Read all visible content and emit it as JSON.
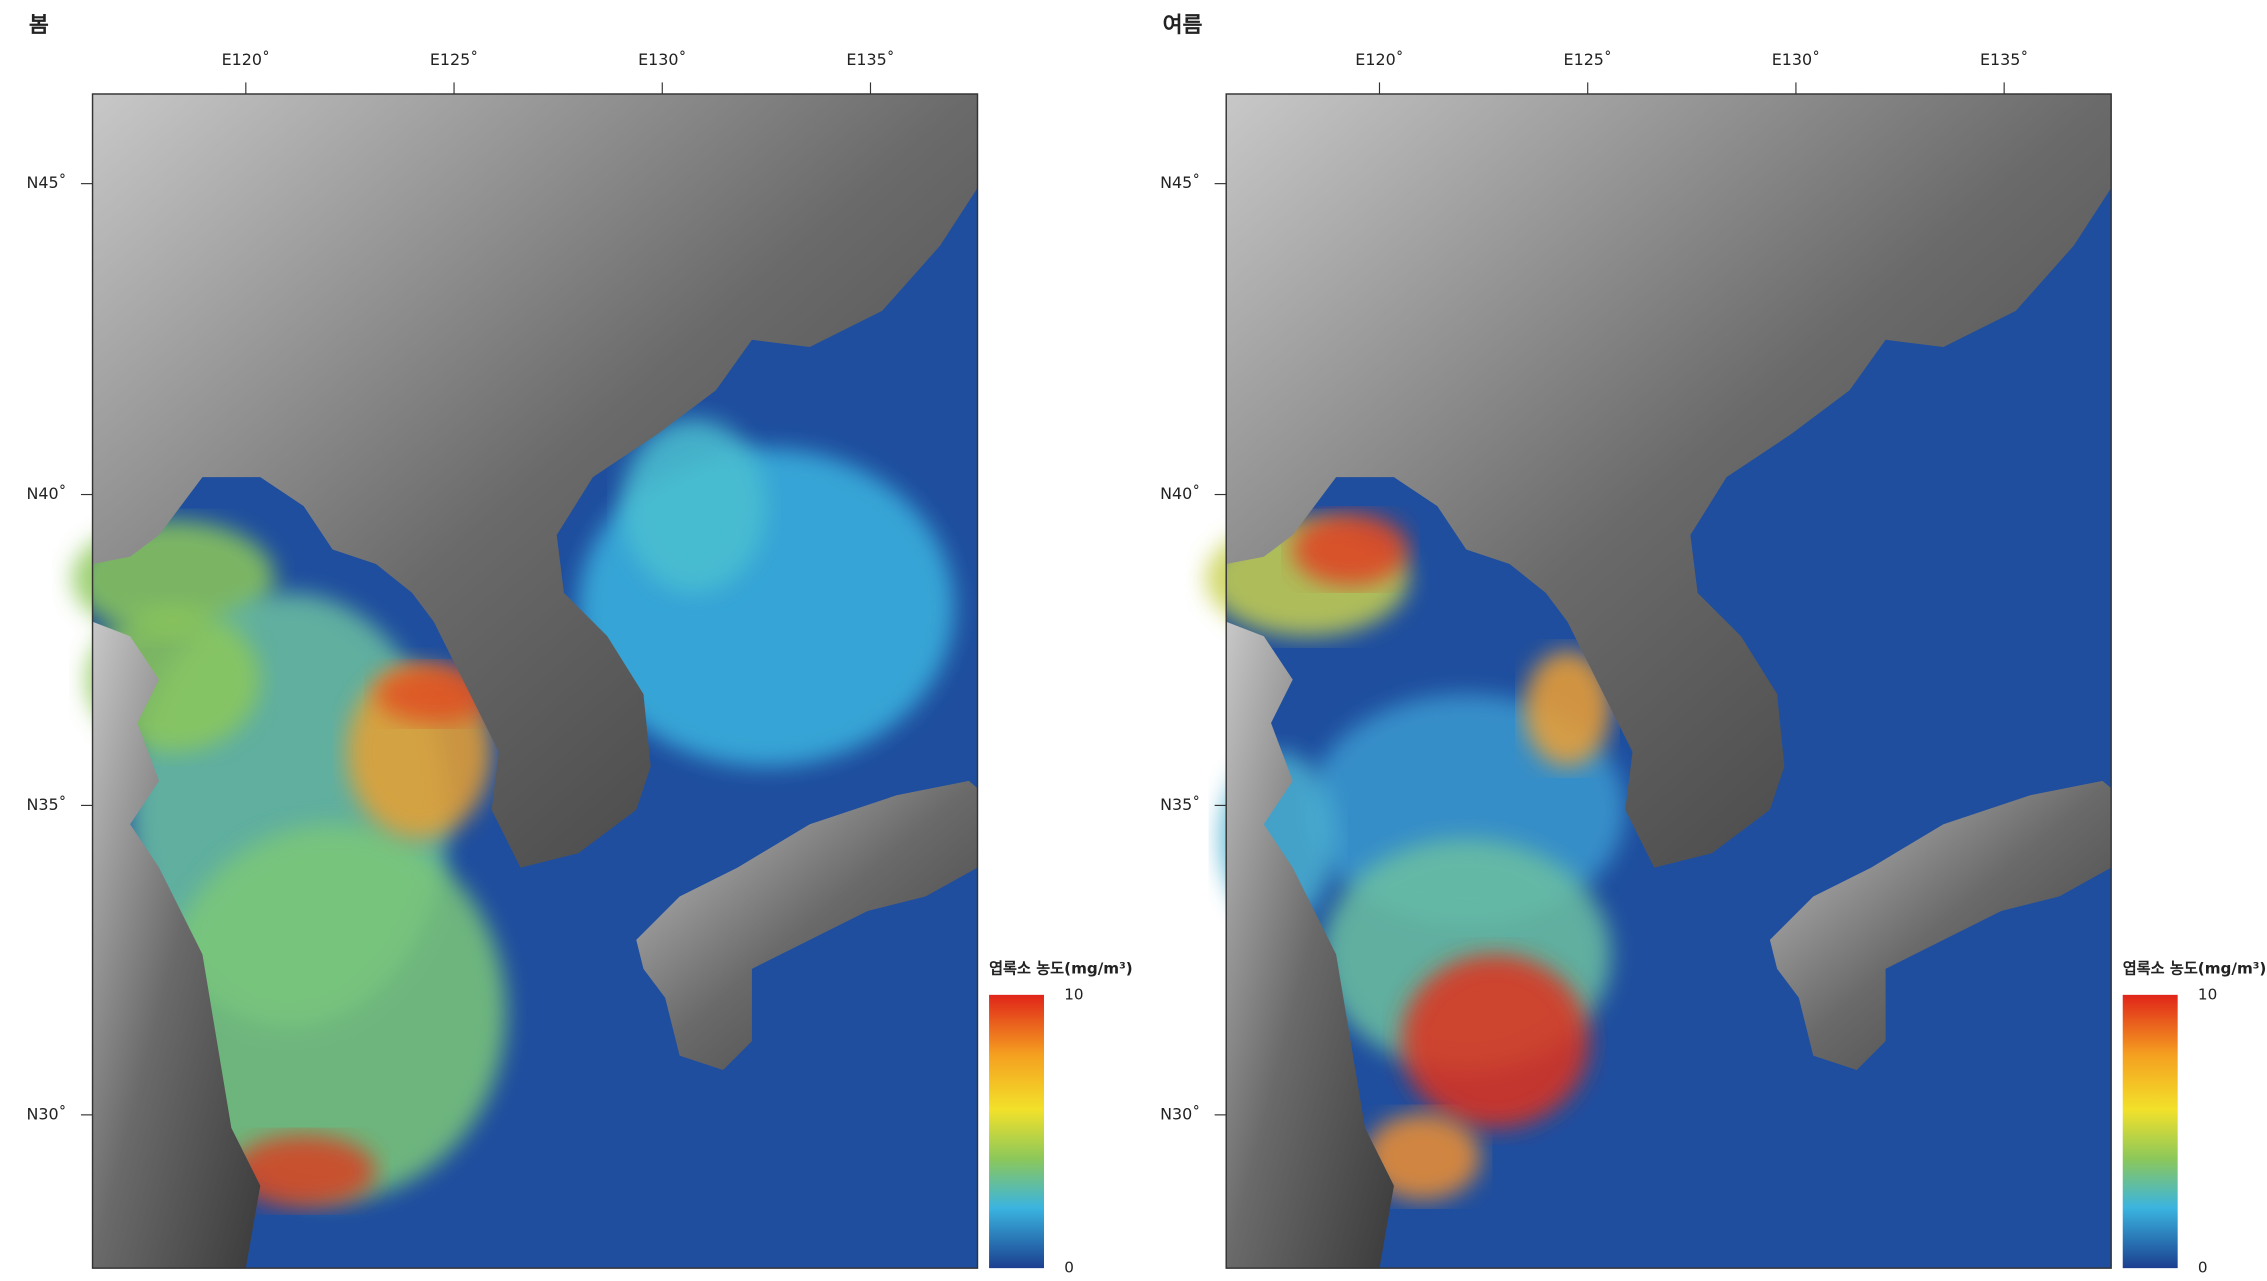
{
  "panels": [
    {
      "title": "봄",
      "lon_ticks": [
        "E120˚",
        "E125˚",
        "E130˚",
        "E135˚"
      ],
      "lat_ticks": [
        "N45˚",
        "N40˚",
        "N35˚",
        "N30˚"
      ],
      "legend": {
        "title": "엽록소 농도(mg/m³)",
        "max": "10",
        "min": "0"
      }
    },
    {
      "title": "여름",
      "lon_ticks": [
        "E120˚",
        "E125˚",
        "E130˚",
        "E135˚"
      ],
      "lat_ticks": [
        "N45˚",
        "N40˚",
        "N35˚",
        "N30˚"
      ],
      "legend": {
        "title": "엽록소 농도(mg/m³)",
        "max": "10",
        "min": "0"
      }
    }
  ]
}
